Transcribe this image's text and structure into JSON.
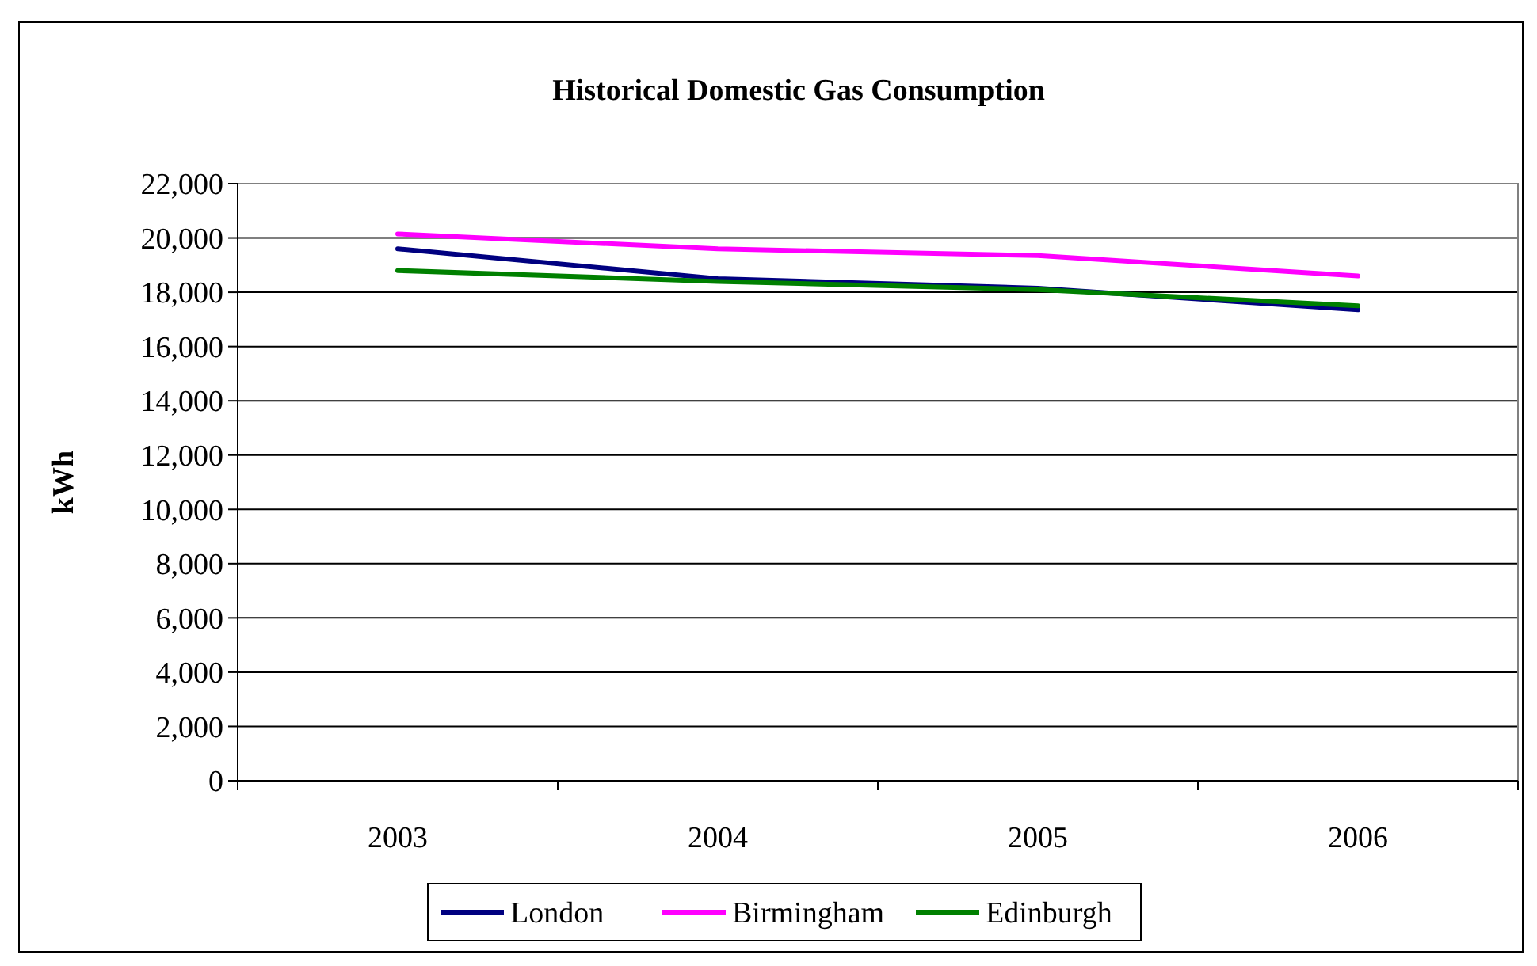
{
  "chart_data": {
    "type": "line",
    "title": "Historical Domestic Gas Consumption",
    "ylabel": "kWh",
    "categories": [
      "2003",
      "2004",
      "2005",
      "2006"
    ],
    "series": [
      {
        "name": "London",
        "color": "#000080",
        "values": [
          19600,
          18500,
          18150,
          17350
        ]
      },
      {
        "name": "Birmingham",
        "color": "#ff00ff",
        "values": [
          20150,
          19600,
          19350,
          18600
        ]
      },
      {
        "name": "Edinburgh",
        "color": "#008000",
        "values": [
          18800,
          18400,
          18100,
          17500
        ]
      }
    ],
    "ylim": [
      0,
      22000
    ],
    "yticks": [
      {
        "value": 0,
        "label": "0"
      },
      {
        "value": 2000,
        "label": "2,000"
      },
      {
        "value": 4000,
        "label": "4,000"
      },
      {
        "value": 6000,
        "label": "6,000"
      },
      {
        "value": 8000,
        "label": "8,000"
      },
      {
        "value": 10000,
        "label": "10,000"
      },
      {
        "value": 12000,
        "label": "12,000"
      },
      {
        "value": 14000,
        "label": "14,000"
      },
      {
        "value": 16000,
        "label": "16,000"
      },
      {
        "value": 18000,
        "label": "18,000"
      },
      {
        "value": 20000,
        "label": "20,000"
      },
      {
        "value": 22000,
        "label": "22,000"
      }
    ],
    "grid": "y",
    "legend": "bottom",
    "line_style": "solid"
  }
}
